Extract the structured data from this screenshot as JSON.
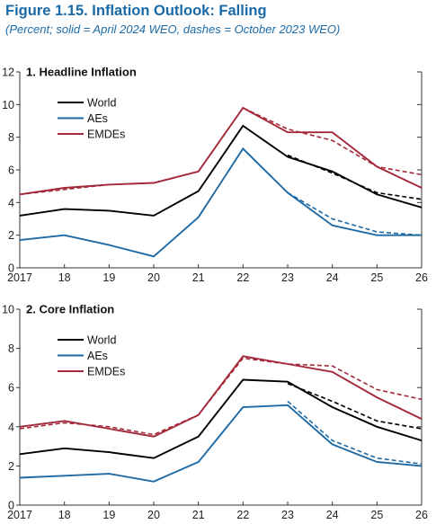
{
  "figure": {
    "title": "Figure 1.15.  Inflation Outlook: Falling",
    "subtitle": "(Percent; solid = April 2024 WEO, dashes = October 2023 WEO)"
  },
  "colors": {
    "World": "#000000",
    "AEs": "#1f6aa5",
    "EMDEs": "#a32a3a",
    "axis": "#333333"
  },
  "chart_data": [
    {
      "type": "line",
      "title": "1. Headline Inflation",
      "x": [
        "2017",
        "18",
        "19",
        "20",
        "21",
        "22",
        "23",
        "24",
        "25",
        "26"
      ],
      "ylim": [
        0,
        12
      ],
      "yticks": [
        0,
        2,
        4,
        6,
        8,
        10,
        12
      ],
      "legend": "top-left",
      "series": [
        {
          "name": "World",
          "solid": [
            3.2,
            3.6,
            3.5,
            3.2,
            4.7,
            8.7,
            6.8,
            5.9,
            4.5,
            3.7
          ],
          "dashed": [
            null,
            null,
            null,
            null,
            null,
            null,
            6.9,
            5.8,
            4.6,
            4.2
          ]
        },
        {
          "name": "AEs",
          "solid": [
            1.7,
            2.0,
            1.4,
            0.7,
            3.1,
            7.3,
            4.6,
            2.6,
            2.0,
            2.0
          ],
          "dashed": [
            null,
            null,
            null,
            null,
            null,
            null,
            4.6,
            3.0,
            2.2,
            2.0
          ]
        },
        {
          "name": "EMDEs",
          "solid": [
            4.5,
            4.9,
            5.1,
            5.2,
            5.9,
            9.8,
            8.3,
            8.3,
            6.2,
            4.9
          ],
          "dashed": [
            4.5,
            4.8,
            5.1,
            5.2,
            5.9,
            9.8,
            8.5,
            7.8,
            6.2,
            5.7
          ]
        }
      ]
    },
    {
      "type": "line",
      "title": "2. Core Inflation",
      "x": [
        "2017",
        "18",
        "19",
        "20",
        "21",
        "22",
        "23",
        "24",
        "25",
        "26"
      ],
      "ylim": [
        0,
        10
      ],
      "yticks": [
        0,
        2,
        4,
        6,
        8,
        10
      ],
      "legend": "top-left",
      "series": [
        {
          "name": "World",
          "solid": [
            2.6,
            2.9,
            2.7,
            2.4,
            3.5,
            6.4,
            6.3,
            5.0,
            4.0,
            3.3
          ],
          "dashed": [
            null,
            null,
            null,
            null,
            null,
            null,
            6.2,
            5.3,
            4.3,
            3.9
          ]
        },
        {
          "name": "AEs",
          "solid": [
            1.4,
            1.5,
            1.6,
            1.2,
            2.2,
            5.0,
            5.1,
            3.1,
            2.2,
            2.0
          ],
          "dashed": [
            null,
            null,
            null,
            null,
            null,
            null,
            5.3,
            3.3,
            2.4,
            2.1
          ]
        },
        {
          "name": "EMDEs",
          "solid": [
            4.0,
            4.3,
            3.9,
            3.5,
            4.6,
            7.6,
            7.2,
            6.8,
            5.5,
            4.4
          ],
          "dashed": [
            3.9,
            4.2,
            4.0,
            3.6,
            4.6,
            7.5,
            7.2,
            7.1,
            5.9,
            5.4
          ]
        }
      ]
    }
  ]
}
